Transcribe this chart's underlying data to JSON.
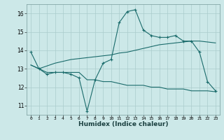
{
  "line1_x": [
    0,
    1,
    2,
    3,
    4,
    5,
    6,
    7,
    8,
    9,
    10,
    11,
    12,
    13,
    14,
    15,
    16,
    17,
    18,
    19,
    20,
    21,
    22,
    23
  ],
  "line1_y": [
    13.9,
    13.0,
    12.7,
    12.8,
    12.8,
    12.7,
    12.5,
    10.7,
    12.4,
    13.3,
    13.5,
    15.5,
    16.1,
    16.2,
    15.1,
    14.8,
    14.7,
    14.7,
    14.8,
    14.5,
    14.5,
    13.9,
    12.3,
    11.8
  ],
  "line2_x": [
    0,
    1,
    2,
    3,
    4,
    5,
    6,
    7,
    8,
    9,
    10,
    11,
    12,
    13,
    14,
    15,
    16,
    17,
    18,
    19,
    20,
    21,
    22,
    23
  ],
  "line2_y": [
    13.2,
    13.0,
    12.8,
    12.8,
    12.8,
    12.8,
    12.8,
    12.4,
    12.4,
    12.3,
    12.3,
    12.2,
    12.1,
    12.1,
    12.1,
    12.0,
    12.0,
    11.9,
    11.9,
    11.9,
    11.8,
    11.8,
    11.8,
    11.75
  ],
  "line3_x": [
    0,
    1,
    2,
    3,
    4,
    5,
    6,
    7,
    8,
    9,
    10,
    11,
    12,
    13,
    14,
    15,
    16,
    17,
    18,
    19,
    20,
    21,
    22,
    23
  ],
  "line3_y": [
    13.2,
    13.0,
    13.15,
    13.3,
    13.4,
    13.5,
    13.55,
    13.6,
    13.65,
    13.7,
    13.75,
    13.85,
    13.9,
    14.0,
    14.1,
    14.2,
    14.3,
    14.35,
    14.4,
    14.45,
    14.5,
    14.5,
    14.45,
    14.4
  ],
  "color": "#1a6b6b",
  "bg_color": "#cce8e8",
  "grid_color": "#aacccc",
  "xlim": [
    -0.5,
    23.5
  ],
  "ylim": [
    10.5,
    16.5
  ],
  "yticks": [
    11,
    12,
    13,
    14,
    15,
    16
  ],
  "xticks": [
    0,
    1,
    2,
    3,
    4,
    5,
    6,
    7,
    8,
    9,
    10,
    11,
    12,
    13,
    14,
    15,
    16,
    17,
    18,
    19,
    20,
    21,
    22,
    23
  ],
  "xlabel": "Humidex (Indice chaleur)",
  "marker": "+"
}
